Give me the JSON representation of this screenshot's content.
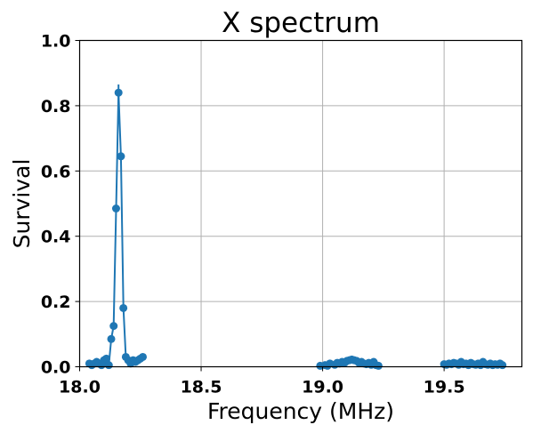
{
  "chart_data": {
    "type": "scatter",
    "title": "X spectrum",
    "xlabel": "Frequency (MHz)",
    "ylabel": "Survival",
    "xlim": [
      18.0,
      19.82
    ],
    "ylim": [
      0.0,
      1.0
    ],
    "xticks": [
      18.0,
      18.5,
      19.0,
      19.5
    ],
    "xtick_labels": [
      "18.0",
      "18.5",
      "19.0",
      "19.5"
    ],
    "yticks": [
      0.0,
      0.2,
      0.4,
      0.6,
      0.8,
      1.0
    ],
    "ytick_labels": [
      "0.0",
      "0.2",
      "0.4",
      "0.6",
      "0.8",
      "1.0"
    ],
    "grid": true,
    "color": "#1f77b4",
    "series": [
      {
        "points": [
          [
            18.04,
            0.01
          ],
          [
            18.05,
            0.005
          ],
          [
            18.06,
            0.01
          ],
          [
            18.07,
            0.015
          ],
          [
            18.08,
            0.01
          ],
          [
            18.09,
            0.005
          ],
          [
            18.1,
            0.02
          ],
          [
            18.11,
            0.025
          ],
          [
            18.12,
            0.005
          ],
          [
            18.13,
            0.085
          ],
          [
            18.14,
            0.125
          ],
          [
            18.15,
            0.485
          ],
          [
            18.16,
            0.84
          ],
          [
            18.17,
            0.645
          ],
          [
            18.18,
            0.18
          ],
          [
            18.19,
            0.03
          ],
          [
            18.2,
            0.02
          ],
          [
            18.21,
            0.01
          ],
          [
            18.22,
            0.02
          ],
          [
            18.23,
            0.015
          ],
          [
            18.24,
            0.02
          ],
          [
            18.25,
            0.025
          ],
          [
            18.26,
            0.03
          ]
        ],
        "error": [
          [
            18.16,
            0.81,
            0.865
          ]
        ]
      },
      {
        "points": [
          [
            18.99,
            0.003
          ],
          [
            19.01,
            0.005
          ],
          [
            19.02,
            0.003
          ],
          [
            19.03,
            0.01
          ],
          [
            19.05,
            0.006
          ],
          [
            19.06,
            0.012
          ],
          [
            19.07,
            0.01
          ],
          [
            19.08,
            0.015
          ],
          [
            19.09,
            0.012
          ],
          [
            19.1,
            0.018
          ],
          [
            19.11,
            0.02
          ],
          [
            19.12,
            0.022
          ],
          [
            19.13,
            0.02
          ],
          [
            19.14,
            0.018
          ],
          [
            19.15,
            0.012
          ],
          [
            19.16,
            0.015
          ],
          [
            19.17,
            0.01
          ],
          [
            19.18,
            0.008
          ],
          [
            19.19,
            0.012
          ],
          [
            19.2,
            0.006
          ],
          [
            19.21,
            0.015
          ],
          [
            19.22,
            0.005
          ],
          [
            19.23,
            0.003
          ]
        ]
      },
      {
        "points": [
          [
            19.5,
            0.008
          ],
          [
            19.51,
            0.006
          ],
          [
            19.52,
            0.01
          ],
          [
            19.53,
            0.008
          ],
          [
            19.54,
            0.012
          ],
          [
            19.55,
            0.01
          ],
          [
            19.56,
            0.006
          ],
          [
            19.57,
            0.015
          ],
          [
            19.58,
            0.008
          ],
          [
            19.59,
            0.01
          ],
          [
            19.6,
            0.005
          ],
          [
            19.61,
            0.012
          ],
          [
            19.62,
            0.008
          ],
          [
            19.63,
            0.006
          ],
          [
            19.64,
            0.01
          ],
          [
            19.65,
            0.005
          ],
          [
            19.66,
            0.015
          ],
          [
            19.67,
            0.008
          ],
          [
            19.68,
            0.006
          ],
          [
            19.69,
            0.01
          ],
          [
            19.7,
            0.005
          ],
          [
            19.71,
            0.008
          ],
          [
            19.72,
            0.006
          ],
          [
            19.73,
            0.01
          ],
          [
            19.74,
            0.005
          ]
        ]
      }
    ]
  }
}
